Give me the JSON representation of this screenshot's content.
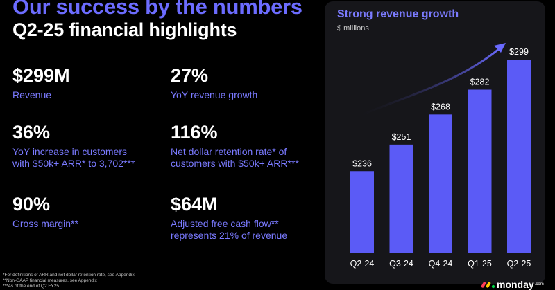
{
  "header": {
    "title": "Our success by the numbers",
    "subtitle": "Q2-25 financial highlights"
  },
  "metrics": [
    {
      "value": "$299M",
      "label": "Revenue"
    },
    {
      "value": "27%",
      "label": "YoY revenue growth"
    },
    {
      "value": "36%",
      "label": "YoY increase in customers\nwith $50k+ ARR* to 3,702***"
    },
    {
      "value": "116%",
      "label": "Net dollar retention rate* of\ncustomers with $50k+ ARR***"
    },
    {
      "value": "90%",
      "label": "Gross margin**"
    },
    {
      "value": "$64M",
      "label": "Adjusted free cash flow**\nrepresents 21% of revenue"
    }
  ],
  "footnotes": [
    "*For definitions of ARR and net dollar retention rate, see Appendix",
    "**Non-GAAP financial measures, see Appendix",
    "***As of the end of Q2 FY25"
  ],
  "logo": {
    "text": "monday",
    "suffix": ".com"
  },
  "colors": {
    "accent": "#6c6cff",
    "bar": "#5b5bf6",
    "label": "#7a7aff",
    "panel": "#16161a",
    "background": "#000000",
    "logo_red": "#ff3d57",
    "logo_yellow": "#ffcb00",
    "logo_green": "#00d647"
  },
  "chart_data": {
    "type": "bar",
    "title": "Strong revenue growth",
    "ylabel": "$ millions",
    "categories": [
      "Q2-24",
      "Q3-24",
      "Q4-24",
      "Q1-25",
      "Q2-25"
    ],
    "values": [
      236,
      251,
      268,
      282,
      299
    ],
    "value_labels": [
      "$236",
      "$251",
      "$268",
      "$282",
      "$299"
    ],
    "ylim": [
      190,
      310
    ],
    "grid": false,
    "legend": "none",
    "annotations": [
      "upward growth arrow"
    ]
  }
}
